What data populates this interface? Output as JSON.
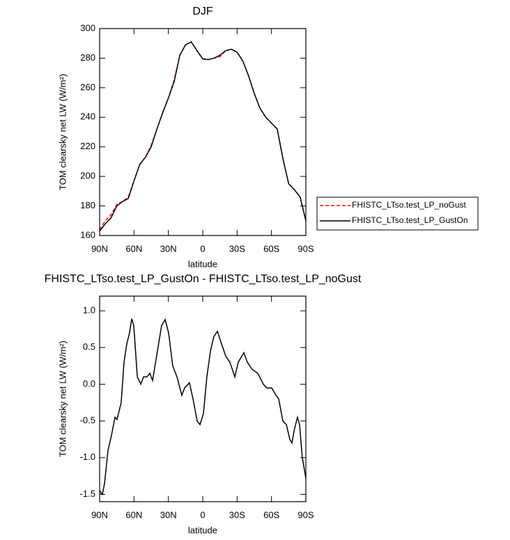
{
  "chart_data": [
    {
      "type": "line",
      "title": "DJF",
      "x_label": "latitude",
      "y_label": "TOM clearsky net LW (W/m²)",
      "x": [
        90,
        85,
        80,
        75,
        70,
        65,
        60,
        55,
        50,
        45,
        40,
        35,
        30,
        25,
        20,
        15,
        10,
        5,
        0,
        -5,
        -10,
        -15,
        -20,
        -25,
        -30,
        -35,
        -40,
        -45,
        -50,
        -55,
        -60,
        -65,
        -70,
        -75,
        -80,
        -85,
        -90
      ],
      "series": [
        {
          "name": "FHISTC_LTso.test_LP_noGust",
          "color": "#ff0000",
          "dash": true,
          "values": [
            164,
            170,
            174,
            181,
            183,
            186,
            197,
            208,
            213,
            221,
            232,
            243,
            253,
            265,
            282,
            289,
            291,
            285,
            279.5,
            279,
            280,
            281,
            285,
            286,
            284,
            278,
            268,
            256,
            246,
            240,
            236,
            232,
            212,
            195,
            191,
            186,
            170
          ]
        },
        {
          "name": "FHISTC_LTso.test_LP_GustOn",
          "color": "#000000",
          "dash": false,
          "values": [
            163,
            168,
            172,
            180,
            183,
            185,
            197,
            208,
            213,
            220,
            232,
            243,
            253,
            264,
            282,
            289,
            291,
            285,
            279.5,
            279,
            280,
            282,
            285,
            286,
            284,
            278,
            268,
            256,
            246,
            240,
            236,
            232,
            212,
            195,
            191,
            186,
            170
          ]
        }
      ],
      "xlim": [
        90,
        -90
      ],
      "xticks": [
        {
          "value": 90,
          "label": "90N"
        },
        {
          "value": 60,
          "label": "60N"
        },
        {
          "value": 30,
          "label": "30N"
        },
        0,
        {
          "value": -30,
          "label": "30S"
        },
        {
          "value": -60,
          "label": "60S"
        },
        {
          "value": -90,
          "label": "90S"
        }
      ],
      "ylim": [
        160,
        300
      ],
      "yticks": [
        160,
        180,
        200,
        220,
        240,
        260,
        280,
        300
      ],
      "legend": "right"
    },
    {
      "type": "line",
      "title": "FHISTC_LTso.test_LP_GustOn - FHISTC_LTso.test_LP_noGust",
      "x_label": "latitude",
      "y_label": "TOM clearsky net LW (W/m²)",
      "x": [
        90,
        87.6,
        85.7,
        82.7,
        79.7,
        76.6,
        74.8,
        71.2,
        68.7,
        66.3,
        63.9,
        62.0,
        60.2,
        57.1,
        54.1,
        51.7,
        48.7,
        46.2,
        43.8,
        40.1,
        35.9,
        32.8,
        29.8,
        26.2,
        22.5,
        18.3,
        15.8,
        11.6,
        8.5,
        4.9,
        2.4,
        -0.6,
        -3.6,
        -6.7,
        -9.7,
        -12.8,
        -16.4,
        -20.1,
        -23.7,
        -28.0,
        -31.0,
        -35.9,
        -38.9,
        -43.2,
        -48.0,
        -52.9,
        -55.9,
        -60.2,
        -63.9,
        -66.3,
        -69.9,
        -73.0,
        -76.0,
        -77.8,
        -80.2,
        -82.7,
        -84.5,
        -86.9,
        -90
      ],
      "series": [
        {
          "color": "#000000",
          "dash": false,
          "values": [
            -1.45,
            -1.5,
            -1.35,
            -0.9,
            -0.7,
            -0.45,
            -0.48,
            -0.25,
            0.3,
            0.55,
            0.7,
            0.89,
            0.8,
            0.1,
            0.0,
            0.1,
            0.1,
            0.15,
            0.05,
            0.4,
            0.8,
            0.88,
            0.7,
            0.25,
            0.1,
            -0.15,
            -0.05,
            0.02,
            -0.2,
            -0.5,
            -0.55,
            -0.4,
            0.1,
            0.45,
            0.65,
            0.72,
            0.55,
            0.38,
            0.3,
            0.1,
            0.3,
            0.43,
            0.3,
            0.2,
            0.15,
            0.0,
            -0.05,
            -0.05,
            -0.15,
            -0.2,
            -0.5,
            -0.55,
            -0.75,
            -0.8,
            -0.6,
            -0.45,
            -0.55,
            -1.0,
            -1.28
          ]
        }
      ],
      "xlim": [
        90,
        -90
      ],
      "xticks": [
        {
          "value": 90,
          "label": "90N"
        },
        {
          "value": 60,
          "label": "60N"
        },
        {
          "value": 30,
          "label": "30N"
        },
        0,
        {
          "value": -30,
          "label": "30S"
        },
        {
          "value": -60,
          "label": "60S"
        },
        {
          "value": -90,
          "label": "90S"
        }
      ],
      "ylim": [
        -1.6,
        1.2
      ],
      "yticks": [
        -1.5,
        {
          "value": -1,
          "label": "-1.0"
        },
        -0.5,
        {
          "value": 0,
          "label": "0.0"
        },
        0.5,
        {
          "value": 1,
          "label": "1.0"
        }
      ]
    }
  ]
}
